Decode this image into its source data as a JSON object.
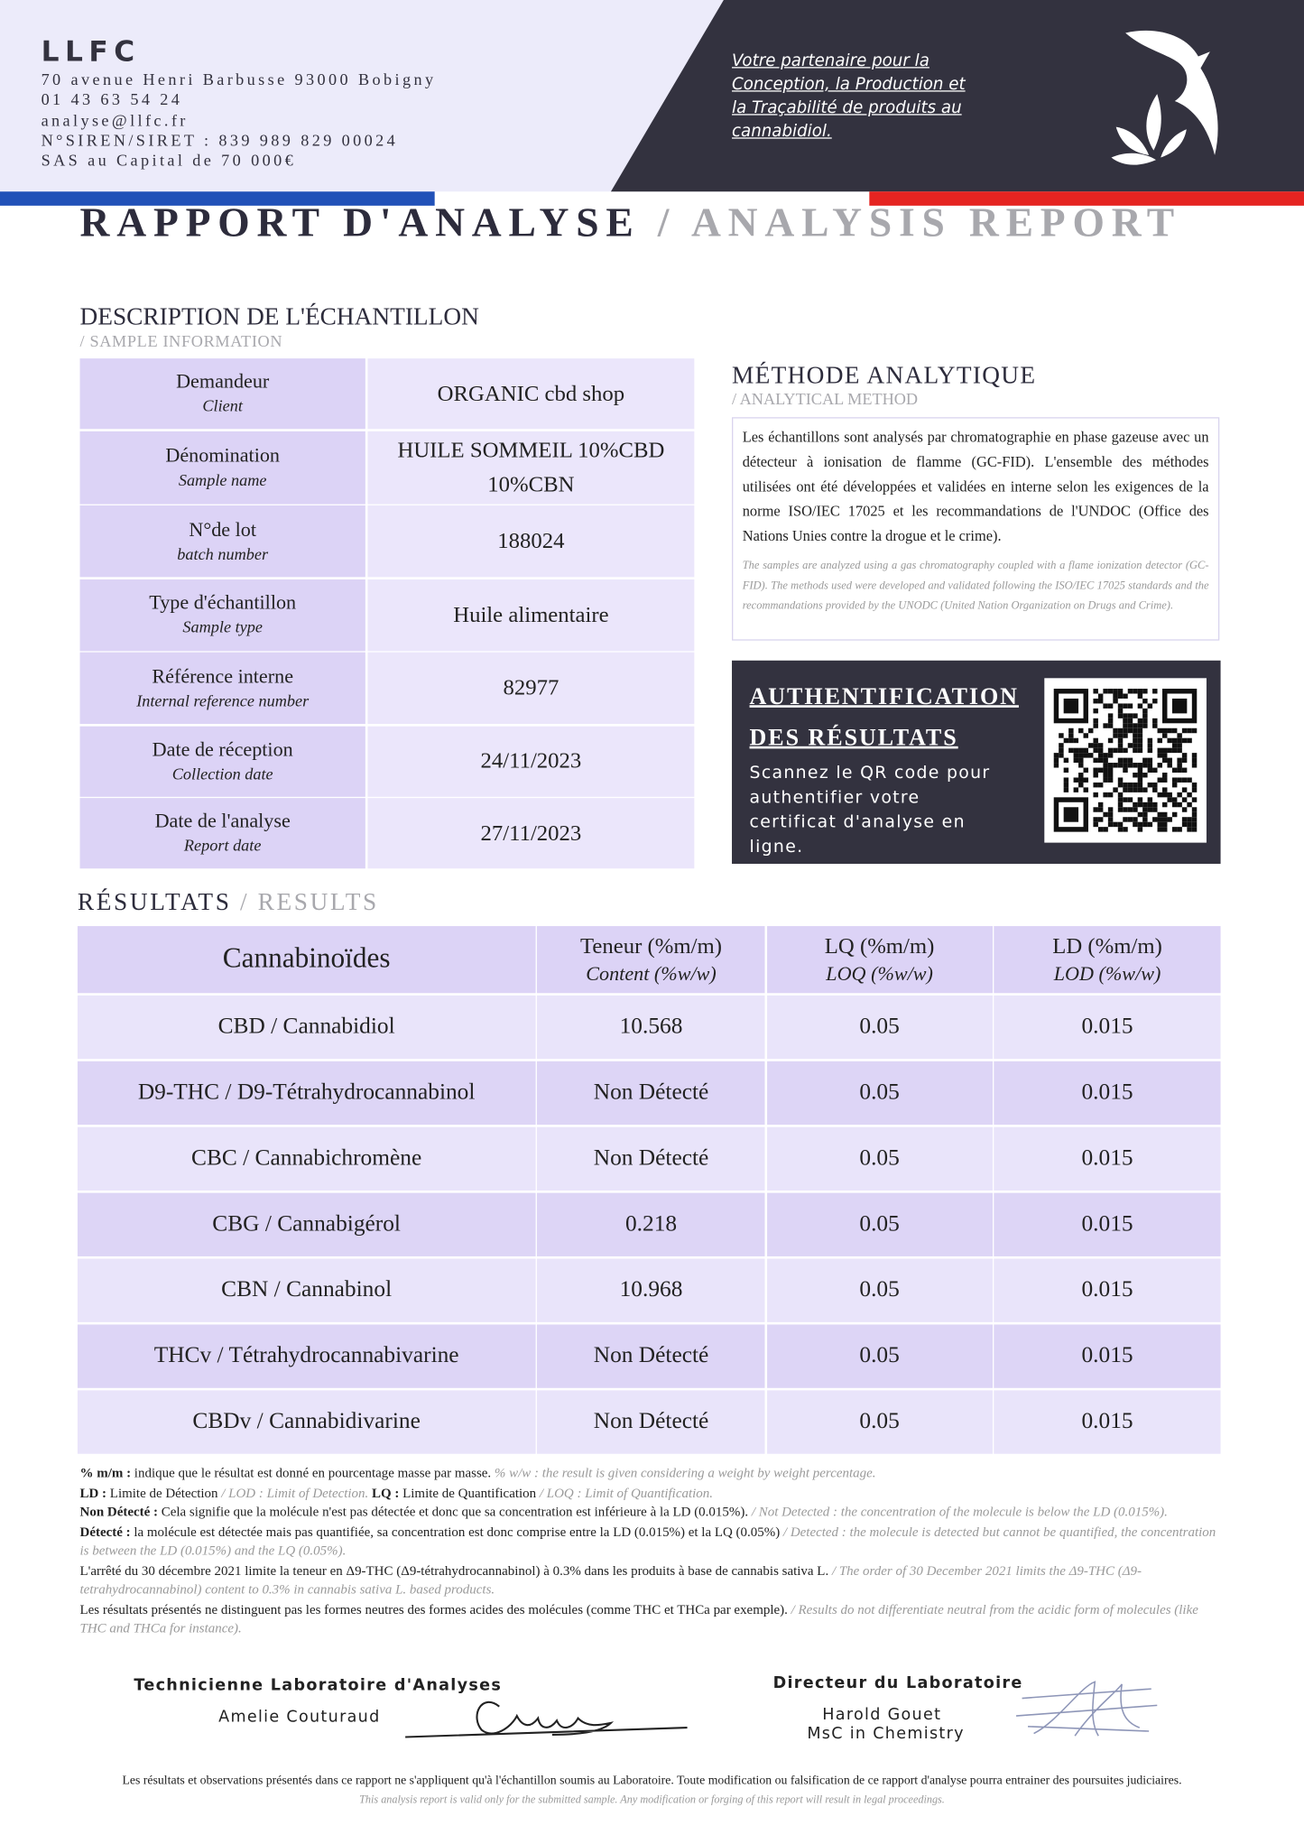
{
  "header": {
    "company": "LLFC",
    "address": [
      "70 avenue Henri Barbusse 93000 Bobigny",
      "01 43 63 54 24",
      "analyse@llfc.fr",
      "N°SIREN/SIRET : 839 989 829 00024",
      "SAS au Capital de 70 000€"
    ],
    "tagline": [
      "Votre partenaire pour la",
      "Conception, la Production et",
      "la Traçabilité de produits au",
      "cannabidiol."
    ]
  },
  "report": {
    "title": "RAPPORT D'ANALYSE",
    "title_en": "/ ANALYSIS REPORT"
  },
  "sample": {
    "heading": "DESCRIPTION DE L'ÉCHANTILLON",
    "heading_en": "/ SAMPLE INFORMATION",
    "rows": [
      {
        "label": "Demandeur",
        "sublabel": "Client",
        "value": "ORGANIC cbd shop"
      },
      {
        "label": "Dénomination",
        "sublabel": "Sample name",
        "value": "HUILE SOMMEIL 10%CBD 10%CBN"
      },
      {
        "label": "N°de lot",
        "sublabel": "batch number",
        "value": "188024"
      },
      {
        "label": "Type d'échantillon",
        "sublabel": "Sample type",
        "value": "Huile alimentaire"
      },
      {
        "label": "Référence interne",
        "sublabel": "Internal reference number",
        "value": "82977"
      },
      {
        "label": "Date de réception",
        "sublabel": "Collection date",
        "value": "24/11/2023"
      },
      {
        "label": "Date de l'analyse",
        "sublabel": "Report date",
        "value": "27/11/2023"
      }
    ]
  },
  "method": {
    "heading": "MÉTHODE ANALYTIQUE",
    "heading_en": "/ ANALYTICAL METHOD",
    "text": "Les échantillons sont analysés par chromatographie en phase gazeuse avec un détecteur à ionisation de flamme (GC-FID). L'ensemble des méthodes utilisées ont été développées et validées en interne selon les exigences de la norme ISO/IEC 17025 et les recommandations de l'UNDOC (Office des Nations Unies contre la drogue et le crime).",
    "text_en": "The samples are analyzed using a gas chromatography coupled with a flame ionization detector (GC-FID). The methods used were developed and validated following the ISO/IEC 17025 standards and the recommandations provided by the UNODC (United Nation Organization on Drugs and Crime)."
  },
  "authentication": {
    "title": [
      "AUTHENTIFICATION",
      "DES RÉSULTATS"
    ],
    "text": "Scannez le QR code pour authentifier votre certificat d'analyse en ligne."
  },
  "results": {
    "heading": "RÉSULTATS",
    "heading_en": "/  RESULTS",
    "columns": [
      {
        "label": "Cannabinoïdes"
      },
      {
        "label": "Teneur (%m/m)",
        "sublabel": "Content (%w/w)"
      },
      {
        "label": "LQ (%m/m)",
        "sublabel": "LOQ (%w/w)"
      },
      {
        "label": "LD (%m/m)",
        "sublabel": "LOD (%w/w)"
      }
    ],
    "rows": [
      [
        "CBD / Cannabidiol",
        "10.568",
        "0.05",
        "0.015"
      ],
      [
        "D9-THC / D9-Tétrahydrocannabinol",
        "Non Détecté",
        "0.05",
        "0.015"
      ],
      [
        "CBC / Cannabichromène",
        "Non Détecté",
        "0.05",
        "0.015"
      ],
      [
        "CBG / Cannabigérol",
        "0.218",
        "0.05",
        "0.015"
      ],
      [
        "CBN / Cannabinol",
        "10.968",
        "0.05",
        "0.015"
      ],
      [
        "THCv / Tétrahydrocannabivarine",
        "Non Détecté",
        "0.05",
        "0.015"
      ],
      [
        "CBDv / Cannabidivarine",
        "Non Détecté",
        "0.05",
        "0.015"
      ]
    ]
  },
  "notes": [
    [
      {
        "term": "% m/m :",
        "text": " indique que le résultat est donné en pourcentage masse par masse.",
        "translation": "  % w/w : the result is given considering a weight by weight percentage."
      }
    ],
    [
      {
        "term": "LD :",
        "text": " Limite de Détection ",
        "translation": "/ LOD : Limit of Detection."
      },
      {
        "term": "LQ :",
        "text": " Limite de Quantification ",
        "translation": "/ LOQ : Limit of Quantification."
      }
    ],
    [
      {
        "term": "Non Détecté :",
        "text": " Cela signifie que la molécule n'est pas détectée et donc que sa concentration est inférieure à la LD (0.015%). ",
        "translation": "/ Not Detected : the concentration of the molecule is below the LD (0.015%)."
      }
    ],
    [
      {
        "term": "Détecté :",
        "text": " la molécule est détectée mais pas quantifiée, sa concentration est donc comprise entre la LD (0.015%) et la LQ (0.05%) ",
        "translation": "/ Detected : the molecule is detected but cannot be quantified, the concentration is between the LD (0.015%) and the LQ (0.05%)."
      }
    ],
    [
      {
        "text": "L'arrêté du 30 décembre 2021 limite la teneur en Δ9-THC (Δ9-tétrahydrocannabinol) à 0.3% dans les produits à base de cannabis sativa L. ",
        "translation": "/ The order of 30 December 2021 limits the Δ9-THC (Δ9-tetrahydrocannabinol) content to 0.3% in cannabis sativa L. based products."
      }
    ],
    [
      {
        "text": "Les résultats présentés ne distinguent pas les formes neutres des formes acides des molécules (comme THC et THCa par exemple). ",
        "translation": "/ Results do not differentiate neutral from the acidic form of molecules (like THC and THCa for instance)."
      }
    ]
  ],
  "signatures": [
    {
      "title": "Technicienne Laboratoire d'Analyses",
      "name": "Amelie Couturaud"
    },
    {
      "title": "Directeur du Laboratoire",
      "name": "Harold Gouet",
      "degree": "MsC in Chemistry"
    }
  ],
  "footer": {
    "text": "Les résultats et observations présentés dans ce rapport ne s'appliquent qu'à l'échantillon soumis au Laboratoire. Toute modification ou falsification de ce rapport d'analyse pourra entrainer des poursuites judiciaires.",
    "text_en": "This analysis report is valid only for the submitted sample. Any modification or forging of this report will result in legal proceedings."
  }
}
